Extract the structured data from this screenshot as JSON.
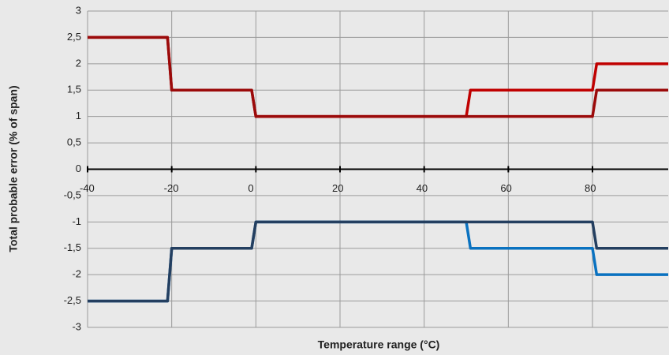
{
  "chart_data": {
    "type": "line",
    "xlabel": "Temperature range (°C)",
    "ylabel": "Total probable error (% of span)",
    "xlim": [
      -40,
      98
    ],
    "xticks": [
      -40,
      -20,
      0,
      20,
      40,
      60,
      80
    ],
    "ylim": [
      -3,
      3
    ],
    "yticks": [
      {
        "value": -3,
        "label": "-3"
      },
      {
        "value": -2.5,
        "label": "-2,5"
      },
      {
        "value": -2,
        "label": "-2"
      },
      {
        "value": -1.5,
        "label": "-1,5"
      },
      {
        "value": -1,
        "label": "-1"
      },
      {
        "value": -0.5,
        "label": "-0,5"
      },
      {
        "value": 0,
        "label": "0"
      },
      {
        "value": 0.5,
        "label": "0,5"
      },
      {
        "value": 1,
        "label": "1"
      },
      {
        "value": 1.5,
        "label": "1,5"
      },
      {
        "value": 2,
        "label": "2"
      },
      {
        "value": 2.5,
        "label": "2,5"
      },
      {
        "value": 3,
        "label": "3"
      }
    ],
    "grid": true,
    "series": [
      {
        "color": "#c00000",
        "x": [
          -40,
          -21,
          -20,
          -1,
          0,
          50,
          51,
          80,
          81,
          98
        ],
        "values": [
          2.5,
          2.5,
          1.5,
          1.5,
          1,
          1,
          1.5,
          1.5,
          2,
          2
        ]
      },
      {
        "color": "#9b0a0a",
        "x": [
          -40,
          -21,
          -20,
          -1,
          0,
          80,
          81,
          98
        ],
        "values": [
          2.5,
          2.5,
          1.5,
          1.5,
          1,
          1,
          1.5,
          1.5
        ]
      },
      {
        "color": "#0a72c0",
        "x": [
          -40,
          -21,
          -20,
          -1,
          0,
          50,
          51,
          80,
          81,
          98
        ],
        "values": [
          -2.5,
          -2.5,
          -1.5,
          -1.5,
          -1,
          -1,
          -1.5,
          -1.5,
          -2,
          -2
        ]
      },
      {
        "color": "#243f60",
        "x": [
          -40,
          -21,
          -20,
          -1,
          0,
          80,
          81,
          98
        ],
        "values": [
          -2.5,
          -2.5,
          -1.5,
          -1.5,
          -1,
          -1,
          -1.5,
          -1.5
        ]
      }
    ]
  }
}
